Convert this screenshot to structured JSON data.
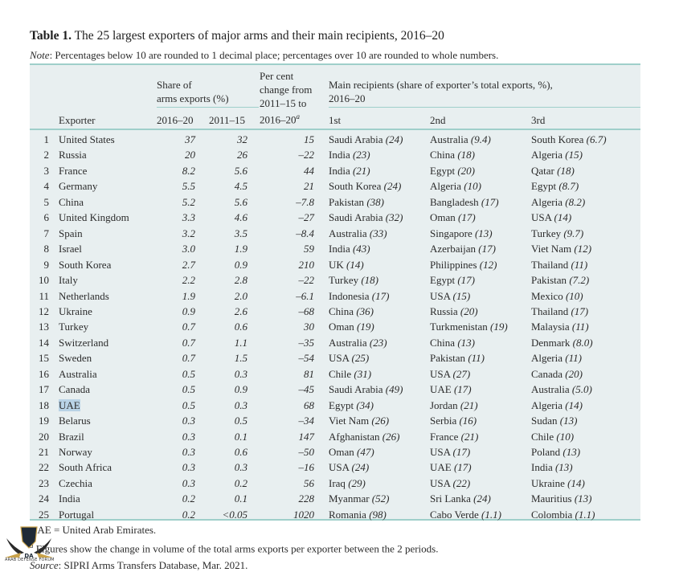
{
  "title": {
    "label": "Table 1.",
    "text": "The 25 largest exporters of major arms and their main recipients, 2016–20"
  },
  "note": {
    "label": "Note",
    "text": ": Percentages below 10 are rounded to 1 decimal place; percentages over 10 are rounded to whole numbers."
  },
  "headers": {
    "exporter": "Exporter",
    "share_group_line1": "Share of",
    "share_group_line2": "arms exports (%)",
    "share_2016_20": "2016–20",
    "share_2011_15": "2011–15",
    "change_line1": "Per cent",
    "change_line2": "change from",
    "change_line3": "2011–15 to",
    "change_line4": "2016–20",
    "change_footnote_mark": "a",
    "recipients_line1": "Main recipients (share of exporter’s total exports, %),",
    "recipients_line2": "2016–20",
    "first": "1st",
    "second": "2nd",
    "third": "3rd"
  },
  "rows": [
    {
      "rank": "1",
      "exporter": "United States",
      "share_2016_20": "37",
      "share_2011_15": "32",
      "change": "15",
      "r1": [
        "Saudi Arabia",
        "(24)"
      ],
      "r2": [
        "Australia",
        "(9.4)"
      ],
      "r3": [
        "South Korea",
        "(6.7)"
      ]
    },
    {
      "rank": "2",
      "exporter": "Russia",
      "share_2016_20": "20",
      "share_2011_15": "26",
      "change": "–22",
      "r1": [
        "India",
        "(23)"
      ],
      "r2": [
        "China",
        "(18)"
      ],
      "r3": [
        "Algeria",
        "(15)"
      ]
    },
    {
      "rank": "3",
      "exporter": "France",
      "share_2016_20": "8.2",
      "share_2011_15": "5.6",
      "change": "44",
      "r1": [
        "India",
        "(21)"
      ],
      "r2": [
        "Egypt",
        "(20)"
      ],
      "r3": [
        "Qatar",
        "(18)"
      ]
    },
    {
      "rank": "4",
      "exporter": "Germany",
      "share_2016_20": "5.5",
      "share_2011_15": "4.5",
      "change": "21",
      "r1": [
        "South Korea",
        "(24)"
      ],
      "r2": [
        "Algeria",
        "(10)"
      ],
      "r3": [
        "Egypt",
        "(8.7)"
      ]
    },
    {
      "rank": "5",
      "exporter": "China",
      "share_2016_20": "5.2",
      "share_2011_15": "5.6",
      "change": "–7.8",
      "r1": [
        "Pakistan",
        "(38)"
      ],
      "r2": [
        "Bangladesh",
        "(17)"
      ],
      "r3": [
        "Algeria",
        "(8.2)"
      ]
    },
    {
      "rank": "6",
      "exporter": "United Kingdom",
      "share_2016_20": "3.3",
      "share_2011_15": "4.6",
      "change": "–27",
      "r1": [
        "Saudi Arabia",
        "(32)"
      ],
      "r2": [
        "Oman",
        "(17)"
      ],
      "r3": [
        "USA",
        "(14)"
      ]
    },
    {
      "rank": "7",
      "exporter": "Spain",
      "share_2016_20": "3.2",
      "share_2011_15": "3.5",
      "change": "–8.4",
      "r1": [
        "Australia",
        "(33)"
      ],
      "r2": [
        "Singapore",
        "(13)"
      ],
      "r3": [
        "Turkey",
        "(9.7)"
      ]
    },
    {
      "rank": "8",
      "exporter": "Israel",
      "share_2016_20": "3.0",
      "share_2011_15": "1.9",
      "change": "59",
      "r1": [
        "India",
        "(43)"
      ],
      "r2": [
        "Azerbaijan",
        "(17)"
      ],
      "r3": [
        "Viet Nam",
        "(12)"
      ]
    },
    {
      "rank": "9",
      "exporter": "South Korea",
      "share_2016_20": "2.7",
      "share_2011_15": "0.9",
      "change": "210",
      "r1": [
        "UK",
        "(14)"
      ],
      "r2": [
        "Philippines",
        "(12)"
      ],
      "r3": [
        "Thailand",
        "(11)"
      ]
    },
    {
      "rank": "10",
      "exporter": "Italy",
      "share_2016_20": "2.2",
      "share_2011_15": "2.8",
      "change": "–22",
      "r1": [
        "Turkey",
        "(18)"
      ],
      "r2": [
        "Egypt",
        "(17)"
      ],
      "r3": [
        "Pakistan",
        "(7.2)"
      ]
    },
    {
      "rank": "11",
      "exporter": "Netherlands",
      "share_2016_20": "1.9",
      "share_2011_15": "2.0",
      "change": "–6.1",
      "r1": [
        "Indonesia",
        "(17)"
      ],
      "r2": [
        "USA",
        "(15)"
      ],
      "r3": [
        "Mexico",
        "(10)"
      ]
    },
    {
      "rank": "12",
      "exporter": "Ukraine",
      "share_2016_20": "0.9",
      "share_2011_15": "2.6",
      "change": "–68",
      "r1": [
        "China",
        "(36)"
      ],
      "r2": [
        "Russia",
        "(20)"
      ],
      "r3": [
        "Thailand",
        "(17)"
      ]
    },
    {
      "rank": "13",
      "exporter": "Turkey",
      "share_2016_20": "0.7",
      "share_2011_15": "0.6",
      "change": "30",
      "r1": [
        "Oman",
        "(19)"
      ],
      "r2": [
        "Turkmenistan",
        "(19)"
      ],
      "r3": [
        "Malaysia",
        "(11)"
      ]
    },
    {
      "rank": "14",
      "exporter": "Switzerland",
      "share_2016_20": "0.7",
      "share_2011_15": "1.1",
      "change": "–35",
      "r1": [
        "Australia",
        "(23)"
      ],
      "r2": [
        "China",
        "(13)"
      ],
      "r3": [
        "Denmark",
        "(8.0)"
      ]
    },
    {
      "rank": "15",
      "exporter": "Sweden",
      "share_2016_20": "0.7",
      "share_2011_15": "1.5",
      "change": "–54",
      "r1": [
        "USA",
        "(25)"
      ],
      "r2": [
        "Pakistan",
        "(11)"
      ],
      "r3": [
        "Algeria",
        "(11)"
      ]
    },
    {
      "rank": "16",
      "exporter": "Australia",
      "share_2016_20": "0.5",
      "share_2011_15": "0.3",
      "change": "81",
      "r1": [
        "Chile",
        "(31)"
      ],
      "r2": [
        "USA",
        "(27)"
      ],
      "r3": [
        "Canada",
        "(20)"
      ]
    },
    {
      "rank": "17",
      "exporter": "Canada",
      "share_2016_20": "0.5",
      "share_2011_15": "0.9",
      "change": "–45",
      "r1": [
        "Saudi Arabia",
        "(49)"
      ],
      "r2": [
        "UAE",
        "(17)"
      ],
      "r3": [
        "Australia",
        "(5.0)"
      ]
    },
    {
      "rank": "18",
      "exporter": "UAE",
      "share_2016_20": "0.5",
      "share_2011_15": "0.3",
      "change": "68",
      "r1": [
        "Egypt",
        "(34)"
      ],
      "r2": [
        "Jordan",
        "(21)"
      ],
      "r3": [
        "Algeria",
        "(14)"
      ],
      "highlighted": true
    },
    {
      "rank": "19",
      "exporter": "Belarus",
      "share_2016_20": "0.3",
      "share_2011_15": "0.5",
      "change": "–34",
      "r1": [
        "Viet Nam",
        "(26)"
      ],
      "r2": [
        "Serbia",
        "(16)"
      ],
      "r3": [
        "Sudan",
        "(13)"
      ]
    },
    {
      "rank": "20",
      "exporter": "Brazil",
      "share_2016_20": "0.3",
      "share_2011_15": "0.1",
      "change": "147",
      "r1": [
        "Afghanistan",
        "(26)"
      ],
      "r2": [
        "France",
        "(21)"
      ],
      "r3": [
        "Chile",
        "(10)"
      ]
    },
    {
      "rank": "21",
      "exporter": "Norway",
      "share_2016_20": "0.3",
      "share_2011_15": "0.6",
      "change": "–50",
      "r1": [
        "Oman",
        "(47)"
      ],
      "r2": [
        "USA",
        "(17)"
      ],
      "r3": [
        "Poland",
        "(13)"
      ]
    },
    {
      "rank": "22",
      "exporter": "South Africa",
      "share_2016_20": "0.3",
      "share_2011_15": "0.3",
      "change": "–16",
      "r1": [
        "USA",
        "(24)"
      ],
      "r2": [
        "UAE",
        "(17)"
      ],
      "r3": [
        "India",
        "(13)"
      ]
    },
    {
      "rank": "23",
      "exporter": "Czechia",
      "share_2016_20": "0.3",
      "share_2011_15": "0.2",
      "change": "56",
      "r1": [
        "Iraq",
        "(29)"
      ],
      "r2": [
        "USA",
        "(22)"
      ],
      "r3": [
        "Ukraine",
        "(14)"
      ]
    },
    {
      "rank": "24",
      "exporter": "India",
      "share_2016_20": "0.2",
      "share_2011_15": "0.1",
      "change": "228",
      "r1": [
        "Myanmar",
        "(52)"
      ],
      "r2": [
        "Sri Lanka",
        "(24)"
      ],
      "r3": [
        "Mauritius",
        "(13)"
      ]
    },
    {
      "rank": "25",
      "exporter": "Portugal",
      "share_2016_20": "0.2",
      "share_2011_15": "<0.05",
      "change": "1020",
      "r1": [
        "Romania",
        "(98)"
      ],
      "r2": [
        "Cabo Verde",
        "(1.1)"
      ],
      "r3": [
        "Colombia",
        "(1.1)"
      ]
    }
  ],
  "footnotes": {
    "abbrev": "UAE = United Arab Emirates.",
    "a_mark": "a",
    "a_text": " Figures show the change in volume of the total arms exports per exporter between the 2 periods.",
    "source_label": "Source",
    "source_text": ": SIPRI Arms Transfers Database, Mar. 2021."
  },
  "watermark": {
    "initials": "DA",
    "name": "ARAB DEFENSE FORUM"
  },
  "colors": {
    "table_bg": "#e8eff0",
    "rule": "#9fcfca",
    "highlight": "#b9d3e6"
  }
}
